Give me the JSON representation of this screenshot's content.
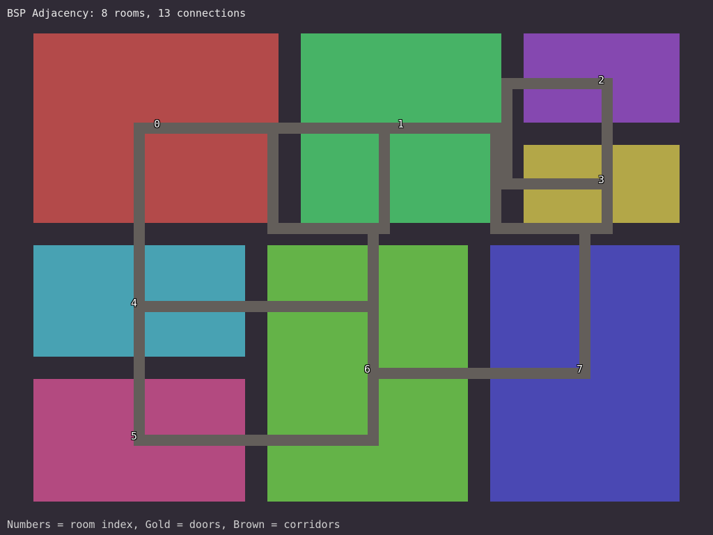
{
  "title": "BSP Adjacency: 8 rooms, 13 connections",
  "footer": "Numbers = room index, Gold = doors, Brown = corridors",
  "rooms": [
    {
      "index": "0",
      "color": "#b34a4a"
    },
    {
      "index": "1",
      "color": "#47b366"
    },
    {
      "index": "2",
      "color": "#8548b0"
    },
    {
      "index": "3",
      "color": "#b3a748"
    },
    {
      "index": "4",
      "color": "#48a2b3"
    },
    {
      "index": "5",
      "color": "#b34a80"
    },
    {
      "index": "6",
      "color": "#64b348"
    },
    {
      "index": "7",
      "color": "#4a48b3"
    }
  ],
  "corridor_color": "#635e5a",
  "background_color": "#302b36"
}
